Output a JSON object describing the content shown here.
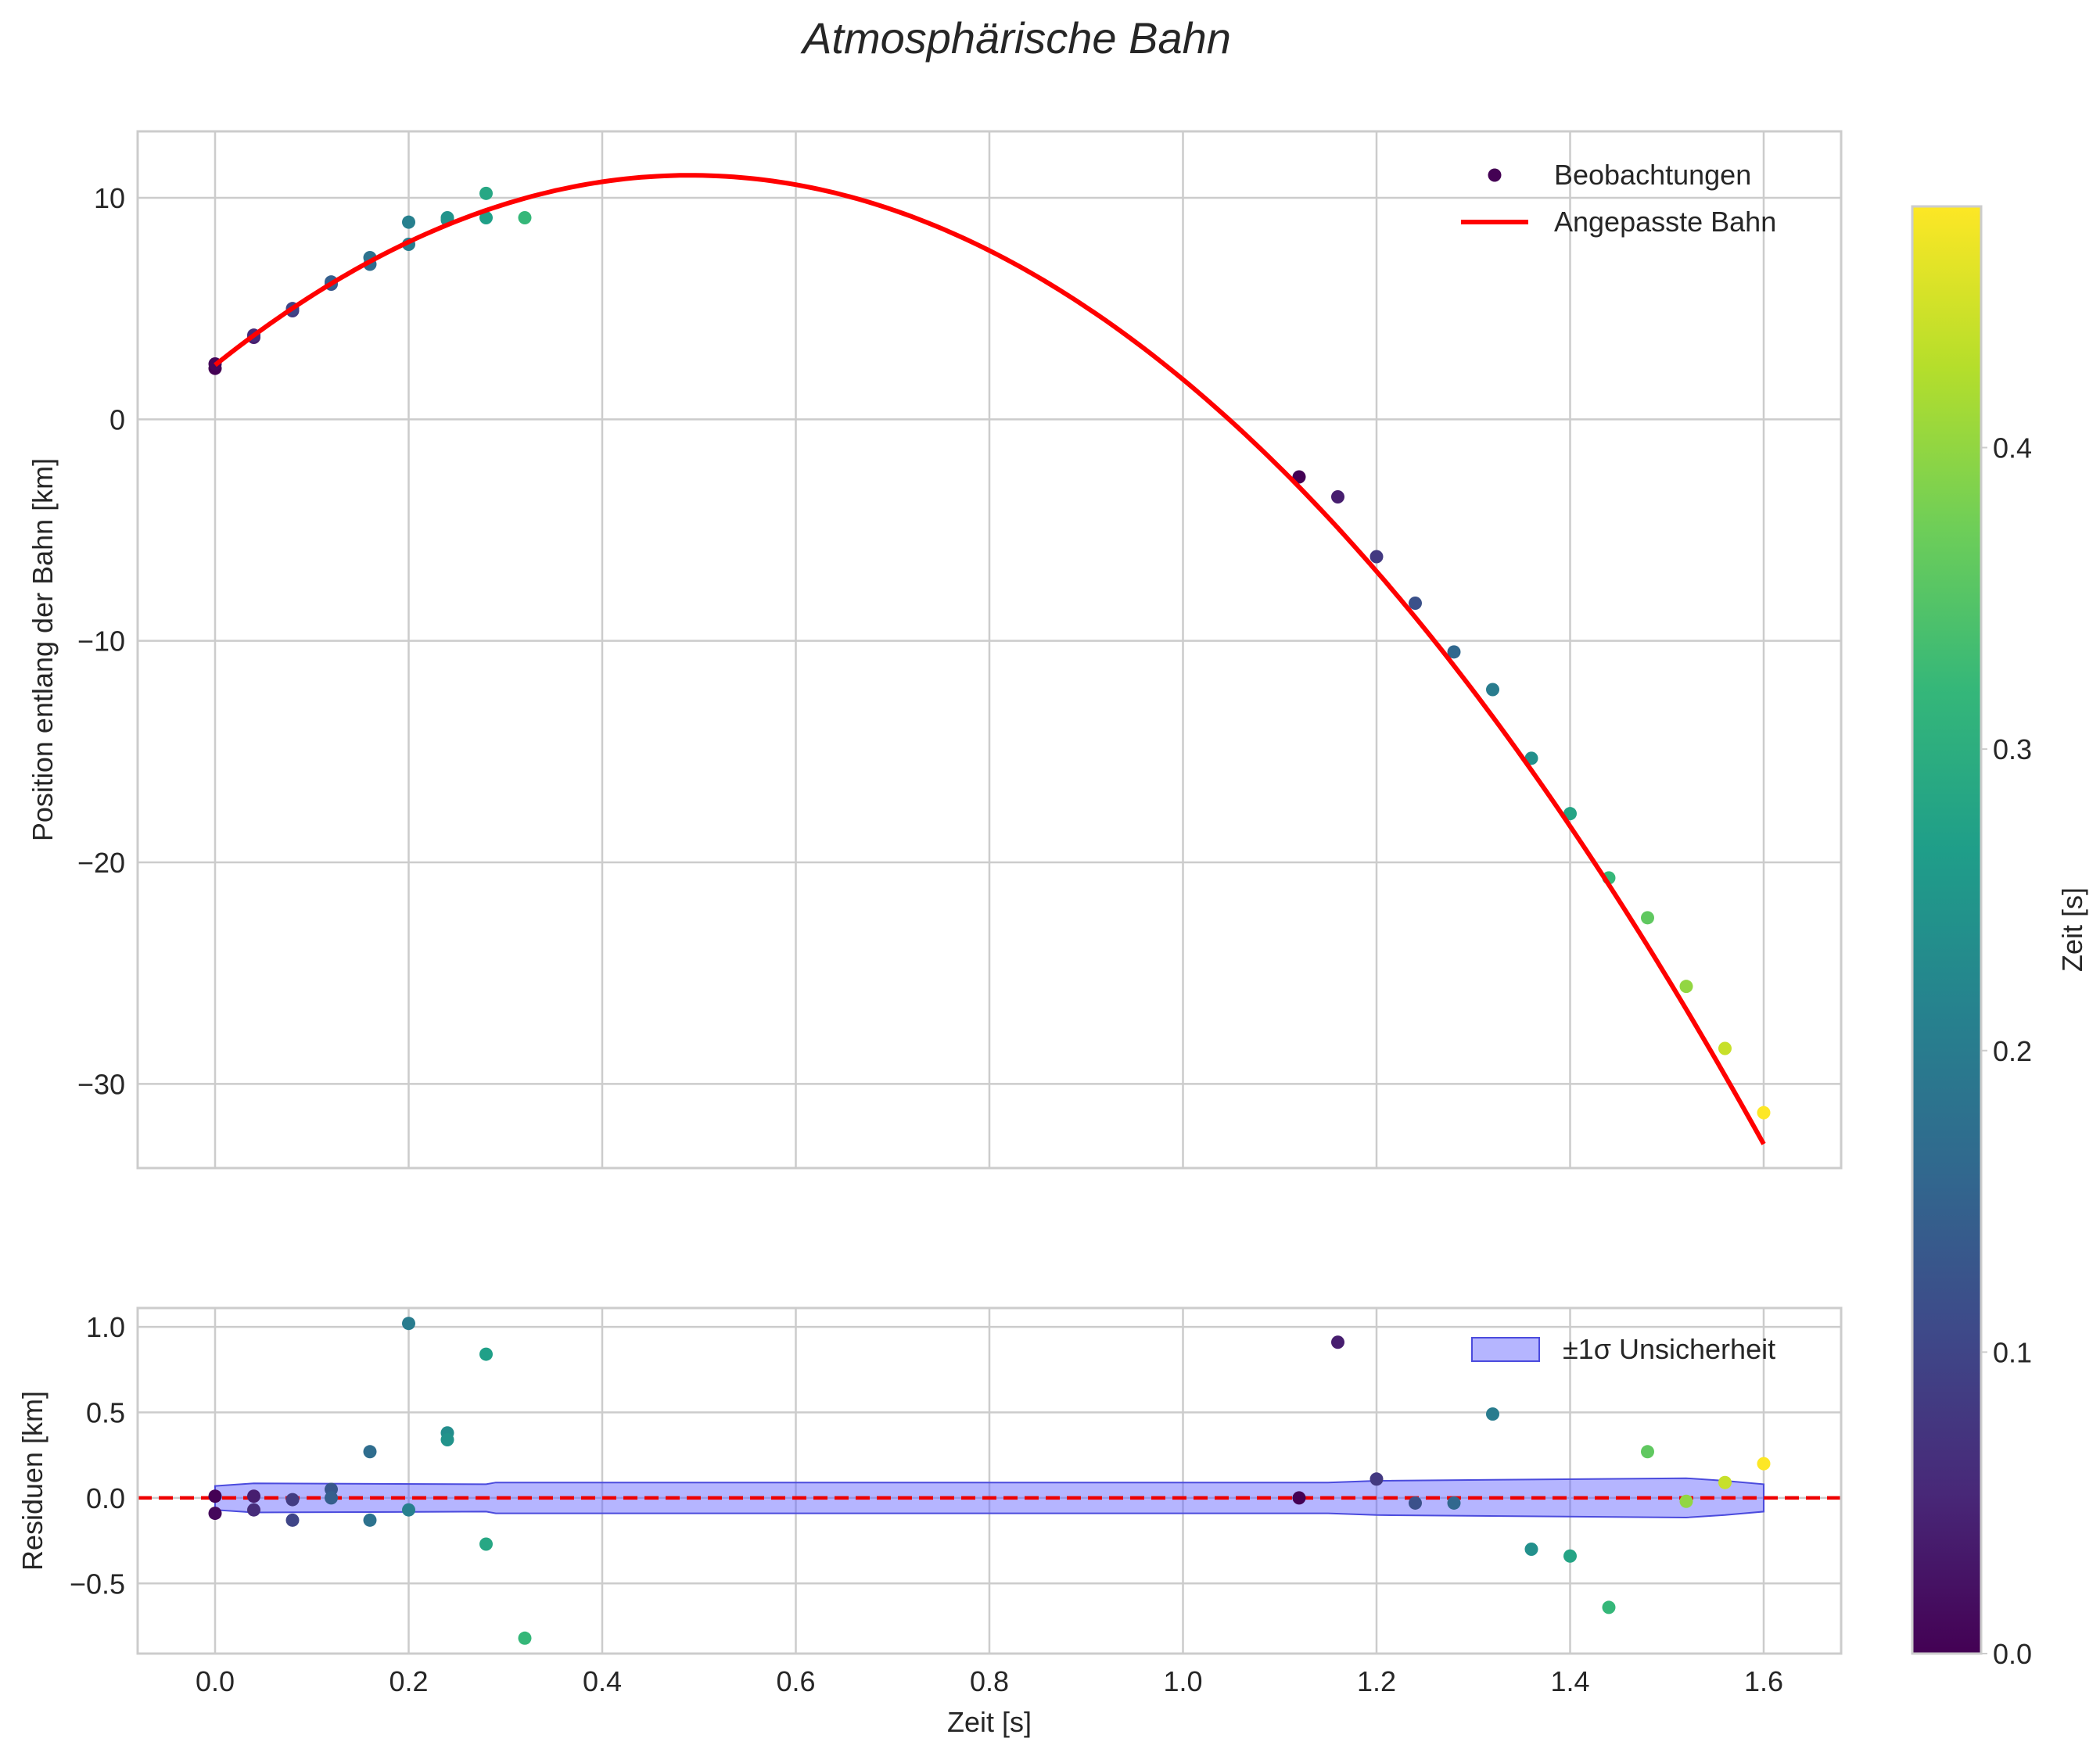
{
  "title": "Atmosphärische Bahn",
  "colors": {
    "fit_line": "#ff0000",
    "zero_line": "#ee0000",
    "band_fill": "#5a5aff",
    "band_edge": "#4b4bdd",
    "grid": "#cccccc",
    "frame": "#cccccc",
    "viridis": [
      "#440154",
      "#482878",
      "#3e4989",
      "#31688e",
      "#26828e",
      "#1f9e89",
      "#35b779",
      "#6ece58",
      "#b5de2b",
      "#fde725"
    ]
  },
  "chart_data": [
    {
      "id": "trajectory",
      "type": "scatter",
      "title": "Atmosphärische Bahn",
      "xlabel": "",
      "ylabel": "Position entlang der Bahn [km]",
      "xlim": [
        -0.08,
        1.68
      ],
      "ylim": [
        -33.8,
        13.0
      ],
      "xticks": [
        0.0,
        0.2,
        0.4,
        0.6,
        0.8,
        1.0,
        1.2,
        1.4,
        1.6
      ],
      "yticks": [
        10,
        0,
        -10,
        -20,
        -30
      ],
      "ytick_labels": [
        "10",
        "0",
        "−10",
        "−20",
        "−30"
      ],
      "grid": true,
      "legend_position": "top-right",
      "legend": [
        "Beobachtungen",
        "Angepasste Bahn"
      ],
      "series": [
        {
          "name": "Beobachtungen",
          "kind": "scatter",
          "color_by": "time",
          "points": [
            {
              "x": 0.0,
              "y": 2.3,
              "c": 0.0
            },
            {
              "x": 0.0,
              "y": 2.5,
              "c": 0.01
            },
            {
              "x": 0.04,
              "y": 3.7,
              "c": 0.04
            },
            {
              "x": 0.04,
              "y": 3.8,
              "c": 0.06
            },
            {
              "x": 0.08,
              "y": 4.9,
              "c": 0.085
            },
            {
              "x": 0.08,
              "y": 5.0,
              "c": 0.1
            },
            {
              "x": 0.12,
              "y": 6.1,
              "c": 0.13
            },
            {
              "x": 0.12,
              "y": 6.2,
              "c": 0.145
            },
            {
              "x": 0.16,
              "y": 7.0,
              "c": 0.17
            },
            {
              "x": 0.16,
              "y": 7.3,
              "c": 0.18
            },
            {
              "x": 0.2,
              "y": 7.9,
              "c": 0.2
            },
            {
              "x": 0.2,
              "y": 8.9,
              "c": 0.21
            },
            {
              "x": 0.24,
              "y": 9.0,
              "c": 0.235
            },
            {
              "x": 0.24,
              "y": 9.1,
              "c": 0.245
            },
            {
              "x": 0.28,
              "y": 9.1,
              "c": 0.27
            },
            {
              "x": 0.28,
              "y": 10.2,
              "c": 0.285
            },
            {
              "x": 0.32,
              "y": 9.1,
              "c": 0.32
            },
            {
              "x": 1.12,
              "y": -2.6,
              "c": 0.0
            },
            {
              "x": 1.16,
              "y": -3.5,
              "c": 0.04
            },
            {
              "x": 1.2,
              "y": -6.2,
              "c": 0.08
            },
            {
              "x": 1.24,
              "y": -8.3,
              "c": 0.12
            },
            {
              "x": 1.28,
              "y": -10.5,
              "c": 0.16
            },
            {
              "x": 1.32,
              "y": -12.2,
              "c": 0.2
            },
            {
              "x": 1.36,
              "y": -15.3,
              "c": 0.24
            },
            {
              "x": 1.4,
              "y": -17.8,
              "c": 0.28
            },
            {
              "x": 1.44,
              "y": -20.7,
              "c": 0.32
            },
            {
              "x": 1.48,
              "y": -22.5,
              "c": 0.36
            },
            {
              "x": 1.52,
              "y": -25.6,
              "c": 0.4
            },
            {
              "x": 1.56,
              "y": -28.4,
              "c": 0.44
            },
            {
              "x": 1.6,
              "y": -31.3,
              "c": 0.48
            }
          ]
        },
        {
          "name": "Angepasste Bahn",
          "kind": "line",
          "model": "quadratic",
          "x_range": [
            0.0,
            1.6
          ],
          "coefficients": {
            "a": -35.55,
            "b": 34.9,
            "c": 2.45
          }
        }
      ]
    },
    {
      "id": "residuals",
      "type": "scatter",
      "xlabel": "Zeit [s]",
      "ylabel": "Residuen [km]",
      "xlim": [
        -0.08,
        1.68
      ],
      "ylim": [
        -0.91,
        1.11
      ],
      "xticks": [
        0.0,
        0.2,
        0.4,
        0.6,
        0.8,
        1.0,
        1.2,
        1.4,
        1.6
      ],
      "xtick_labels": [
        "0.0",
        "0.2",
        "0.4",
        "0.6",
        "0.8",
        "1.0",
        "1.2",
        "1.4",
        "1.6"
      ],
      "yticks": [
        1.0,
        0.5,
        0.0,
        -0.5
      ],
      "ytick_labels": [
        "1.0",
        "0.5",
        "0.0",
        "−0.5"
      ],
      "grid": true,
      "legend_position": "top-right",
      "legend": [
        "±1σ Unsicherheit"
      ],
      "zero_line": 0.0,
      "band": {
        "name": "±1σ Unsicherheit",
        "x": [
          0.0,
          0.04,
          0.28,
          0.29,
          1.12,
          1.15,
          1.2,
          1.52,
          1.56,
          1.6
        ],
        "upper": [
          0.07,
          0.085,
          0.08,
          0.09,
          0.09,
          0.09,
          0.1,
          0.115,
          0.1,
          0.08
        ],
        "lower": [
          -0.07,
          -0.085,
          -0.08,
          -0.09,
          -0.09,
          -0.09,
          -0.1,
          -0.115,
          -0.1,
          -0.08
        ]
      },
      "points": [
        {
          "x": 0.0,
          "y": 0.01,
          "c": 0.0
        },
        {
          "x": 0.0,
          "y": -0.09,
          "c": 0.01
        },
        {
          "x": 0.04,
          "y": 0.01,
          "c": 0.04
        },
        {
          "x": 0.04,
          "y": -0.07,
          "c": 0.06
        },
        {
          "x": 0.08,
          "y": -0.01,
          "c": 0.085
        },
        {
          "x": 0.08,
          "y": -0.13,
          "c": 0.1
        },
        {
          "x": 0.12,
          "y": 0.05,
          "c": 0.13
        },
        {
          "x": 0.12,
          "y": 0.0,
          "c": 0.145
        },
        {
          "x": 0.16,
          "y": 0.27,
          "c": 0.17
        },
        {
          "x": 0.16,
          "y": -0.13,
          "c": 0.18
        },
        {
          "x": 0.2,
          "y": 1.02,
          "c": 0.2
        },
        {
          "x": 0.2,
          "y": -0.07,
          "c": 0.21
        },
        {
          "x": 0.24,
          "y": 0.38,
          "c": 0.235
        },
        {
          "x": 0.24,
          "y": 0.34,
          "c": 0.245
        },
        {
          "x": 0.28,
          "y": 0.84,
          "c": 0.27
        },
        {
          "x": 0.28,
          "y": -0.27,
          "c": 0.285
        },
        {
          "x": 0.32,
          "y": -0.82,
          "c": 0.32
        },
        {
          "x": 1.12,
          "y": 0.0,
          "c": 0.0
        },
        {
          "x": 1.16,
          "y": 0.91,
          "c": 0.04
        },
        {
          "x": 1.2,
          "y": 0.11,
          "c": 0.08
        },
        {
          "x": 1.24,
          "y": -0.03,
          "c": 0.12
        },
        {
          "x": 1.28,
          "y": -0.03,
          "c": 0.16
        },
        {
          "x": 1.32,
          "y": 0.49,
          "c": 0.2
        },
        {
          "x": 1.36,
          "y": -0.3,
          "c": 0.24
        },
        {
          "x": 1.4,
          "y": -0.34,
          "c": 0.28
        },
        {
          "x": 1.44,
          "y": -0.64,
          "c": 0.32
        },
        {
          "x": 1.48,
          "y": 0.27,
          "c": 0.36
        },
        {
          "x": 1.52,
          "y": -0.02,
          "c": 0.4
        },
        {
          "x": 1.56,
          "y": 0.09,
          "c": 0.44
        },
        {
          "x": 1.6,
          "y": 0.2,
          "c": 0.48
        }
      ]
    },
    {
      "id": "colorbar",
      "type": "colorbar",
      "label": "Zeit [s]",
      "range": [
        0.0,
        0.48
      ],
      "ticks": [
        0.0,
        0.1,
        0.2,
        0.3,
        0.4
      ],
      "tick_labels": [
        "0.0",
        "0.1",
        "0.2",
        "0.3",
        "0.4"
      ]
    }
  ]
}
